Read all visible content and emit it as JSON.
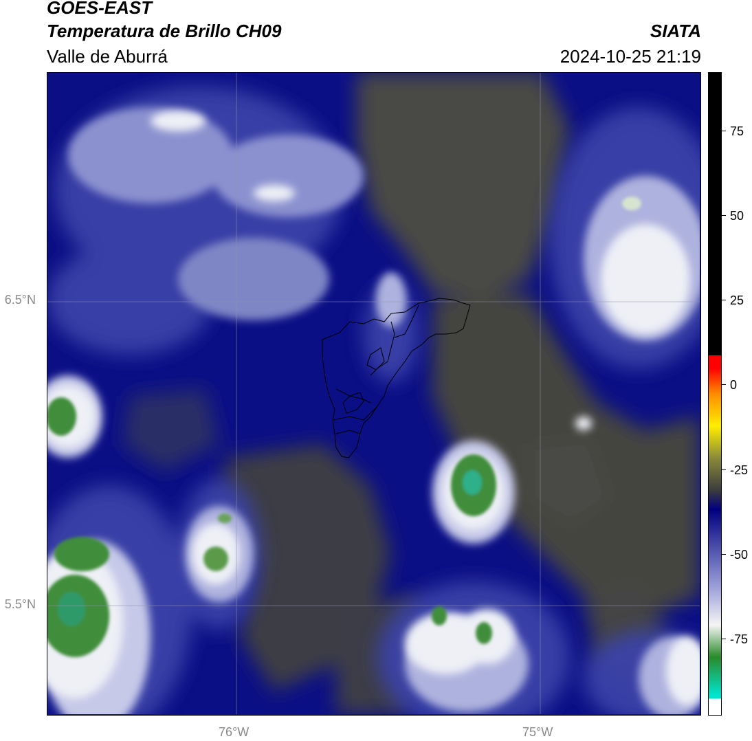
{
  "header": {
    "line1": "GOES-EAST",
    "line2": "Temperatura de Brillo CH09",
    "org": "SIATA",
    "region": "Valle de Aburrá",
    "datetime": "2024-10-25 21:19"
  },
  "map": {
    "lat_ticks": [
      "6.5°N",
      "5.5°N"
    ],
    "lon_ticks": [
      "76°W",
      "75°W"
    ]
  },
  "colorbar": {
    "ticks": [
      "75",
      "50",
      "25",
      "0",
      "-25",
      "-50",
      "-75"
    ],
    "colors": {
      "warm": "#000000",
      "red": "#ff0000",
      "orange": "#ff8c00",
      "yellow": "#ffee00",
      "olive": "#8a8a3a",
      "dark_gray": "#3c3c3c",
      "navy": "#000080",
      "light_blue": "#9a9ed8",
      "white": "#f5f5f5",
      "green": "#2a8a2a",
      "cyan": "#00e5d0"
    }
  },
  "palette": {
    "navy": "#0b0f85",
    "blue_mid": "#3b42a8",
    "blue_light": "#8b91cf",
    "cloud_white": "#eef0f6",
    "green": "#3f8d3a",
    "teal": "#2db08a",
    "olive_gray": "#4a4a45",
    "border": "#000000"
  }
}
